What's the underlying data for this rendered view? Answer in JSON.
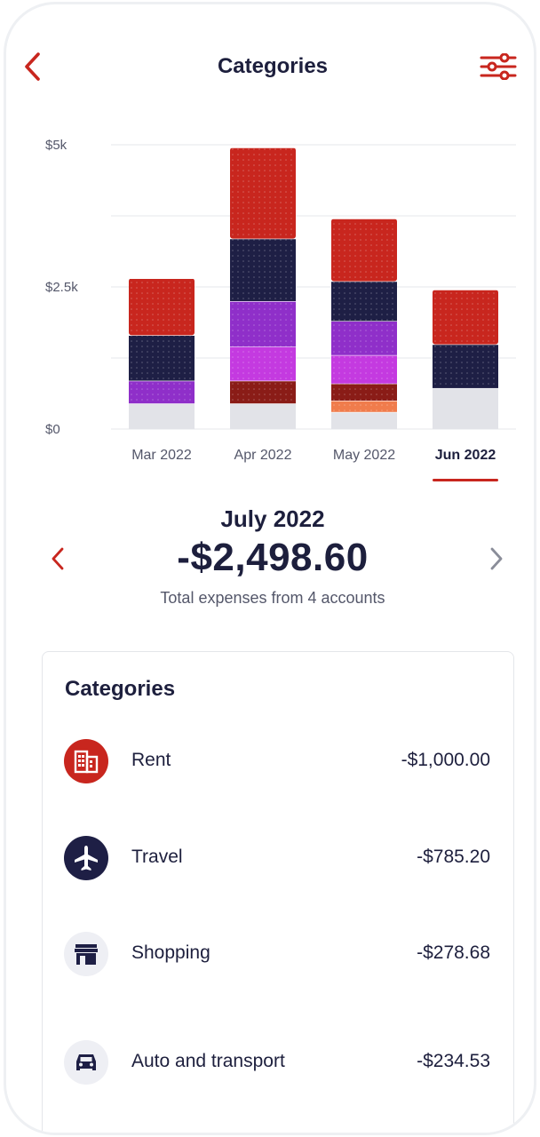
{
  "header": {
    "title": "Categories",
    "back_icon": "chevron-left-icon",
    "filter_icon": "sliders-icon"
  },
  "colors": {
    "accent": "#c8261e",
    "navy": "#1e1f45",
    "purple": "#8f2fc9",
    "magenta": "#c43ae0",
    "maroon": "#8a1c17",
    "orange": "#e9834b",
    "gray": "#e2e3e8"
  },
  "chart_data": {
    "type": "bar",
    "stacked": true,
    "categories": [
      "Mar 2022",
      "Apr 2022",
      "May 2022",
      "Jun 2022"
    ],
    "selected_category": "Jun 2022",
    "y_ticks": [
      "$0",
      "$2.5k",
      "$5k"
    ],
    "ylim": [
      0,
      5000
    ],
    "grid": true,
    "series": [
      {
        "color": "#e2e3e8",
        "values": [
          450,
          450,
          300,
          720
        ]
      },
      {
        "color": "#f07c4c",
        "values": [
          0,
          0,
          200,
          0
        ]
      },
      {
        "color": "#8a1c17",
        "values": [
          0,
          400,
          300,
          0
        ]
      },
      {
        "color": "#c43ae0",
        "values": [
          0,
          600,
          500,
          0
        ]
      },
      {
        "color": "#8f2fc9",
        "values": [
          400,
          800,
          600,
          0
        ]
      },
      {
        "color": "#1e1f45",
        "values": [
          800,
          1100,
          700,
          770
        ]
      },
      {
        "color": "#c8261e",
        "values": [
          1000,
          1600,
          1100,
          960
        ]
      }
    ]
  },
  "summary": {
    "period": "July 2022",
    "total": "-$2,498.60",
    "subtitle": "Total expenses from 4 accounts",
    "prev_icon": "chevron-left-icon",
    "next_icon": "chevron-right-icon"
  },
  "categories_card": {
    "title": "Categories",
    "items": [
      {
        "name": "Rent",
        "amount": "-$1,000.00",
        "icon": "building-icon"
      },
      {
        "name": "Travel",
        "amount": "-$785.20",
        "icon": "airplane-icon"
      },
      {
        "name": "Shopping",
        "amount": "-$278.68",
        "icon": "storefront-icon"
      },
      {
        "name": "Auto and transport",
        "amount": "-$234.53",
        "icon": "car-icon"
      }
    ]
  }
}
